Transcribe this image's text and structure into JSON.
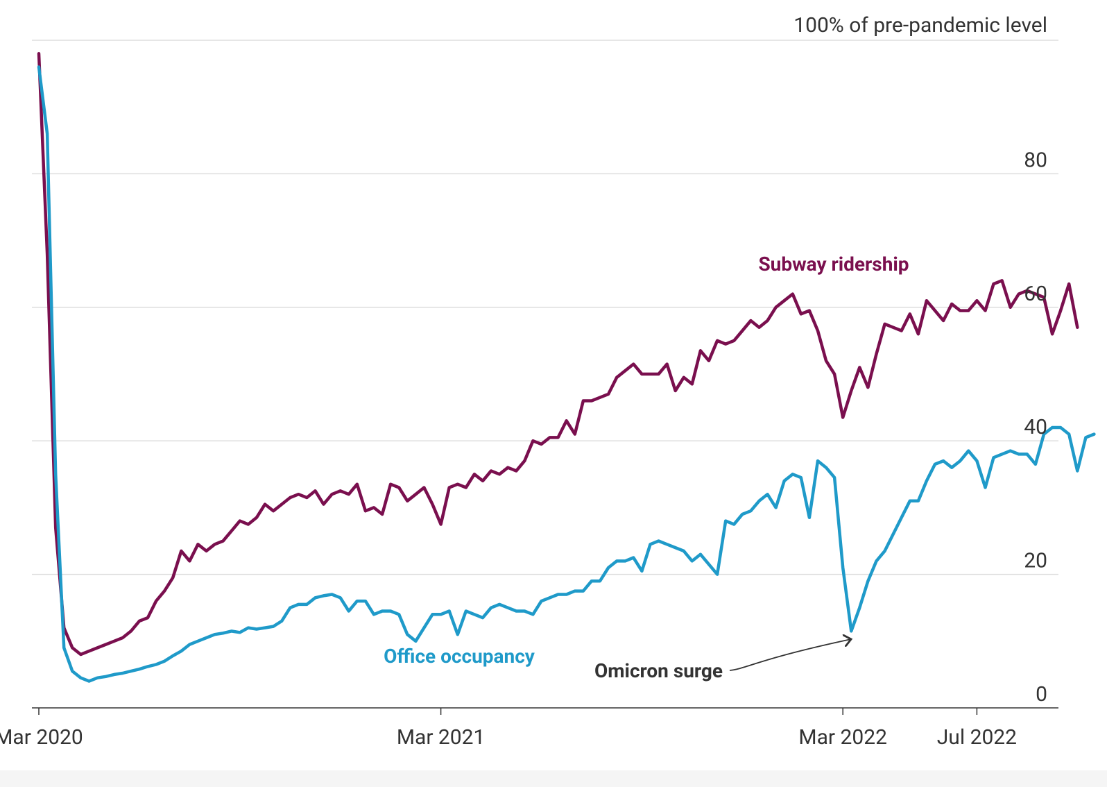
{
  "chart_data": {
    "type": "line",
    "ylabel": "100% of pre-pandemic level",
    "ylim": [
      0,
      100
    ],
    "yticks": [
      0,
      20,
      40,
      60,
      80
    ],
    "x_tick_labels": [
      {
        "label": "Mar 2020",
        "month": 0
      },
      {
        "label": "Mar 2021",
        "month": 12
      },
      {
        "label": "Mar 2022",
        "month": 24
      },
      {
        "label": "Jul 2022",
        "month": 28
      }
    ],
    "grid": true,
    "series": [
      {
        "name": "Subway ridership",
        "color": "#7a0f4e",
        "values": [
          [
            0.0,
            98
          ],
          [
            0.25,
            68
          ],
          [
            0.5,
            27
          ],
          [
            0.75,
            12
          ],
          [
            1.0,
            9
          ],
          [
            1.25,
            8
          ],
          [
            1.5,
            8.5
          ],
          [
            1.75,
            9
          ],
          [
            2.0,
            9.5
          ],
          [
            2.25,
            10
          ],
          [
            2.5,
            10.5
          ],
          [
            2.75,
            11.5
          ],
          [
            3.0,
            13
          ],
          [
            3.25,
            13.5
          ],
          [
            3.5,
            16
          ],
          [
            3.75,
            17.5
          ],
          [
            4.0,
            19.5
          ],
          [
            4.25,
            23.5
          ],
          [
            4.5,
            22
          ],
          [
            4.75,
            24.5
          ],
          [
            5.0,
            23.5
          ],
          [
            5.25,
            24.5
          ],
          [
            5.5,
            25
          ],
          [
            5.75,
            26.5
          ],
          [
            6.0,
            28
          ],
          [
            6.25,
            27.5
          ],
          [
            6.5,
            28.5
          ],
          [
            6.75,
            30.5
          ],
          [
            7.0,
            29.5
          ],
          [
            7.25,
            30.5
          ],
          [
            7.5,
            31.5
          ],
          [
            7.75,
            32
          ],
          [
            8.0,
            31.5
          ],
          [
            8.25,
            32.5
          ],
          [
            8.5,
            30.5
          ],
          [
            8.75,
            32
          ],
          [
            9.0,
            32.5
          ],
          [
            9.25,
            32
          ],
          [
            9.5,
            33.5
          ],
          [
            9.75,
            29.5
          ],
          [
            10.0,
            30
          ],
          [
            10.25,
            29
          ],
          [
            10.5,
            33.5
          ],
          [
            10.75,
            33
          ],
          [
            11.0,
            31
          ],
          [
            11.25,
            32
          ],
          [
            11.5,
            33
          ],
          [
            11.75,
            30.5
          ],
          [
            12.0,
            27.5
          ],
          [
            12.25,
            33
          ],
          [
            12.5,
            33.5
          ],
          [
            12.75,
            33
          ],
          [
            13.0,
            35
          ],
          [
            13.25,
            34
          ],
          [
            13.5,
            35.5
          ],
          [
            13.75,
            35
          ],
          [
            14.0,
            36
          ],
          [
            14.25,
            35.5
          ],
          [
            14.5,
            37
          ],
          [
            14.75,
            40
          ],
          [
            15.0,
            39.5
          ],
          [
            15.25,
            40.5
          ],
          [
            15.5,
            40.5
          ],
          [
            15.75,
            43
          ],
          [
            16.0,
            41
          ],
          [
            16.25,
            46
          ],
          [
            16.5,
            46
          ],
          [
            16.75,
            46.5
          ],
          [
            17.0,
            47
          ],
          [
            17.25,
            49.5
          ],
          [
            17.5,
            50.5
          ],
          [
            17.75,
            51.5
          ],
          [
            18.0,
            50
          ],
          [
            18.25,
            50
          ],
          [
            18.5,
            50
          ],
          [
            18.75,
            51.5
          ],
          [
            19.0,
            47.5
          ],
          [
            19.25,
            49.5
          ],
          [
            19.5,
            48.5
          ],
          [
            19.75,
            53.5
          ],
          [
            20.0,
            52
          ],
          [
            20.25,
            55
          ],
          [
            20.5,
            54.5
          ],
          [
            20.75,
            55
          ],
          [
            21.0,
            56.5
          ],
          [
            21.25,
            58
          ],
          [
            21.5,
            57
          ],
          [
            21.75,
            58
          ],
          [
            22.0,
            60
          ],
          [
            22.25,
            61
          ],
          [
            22.5,
            62
          ],
          [
            22.75,
            59
          ],
          [
            23.0,
            59.5
          ],
          [
            23.25,
            56.5
          ],
          [
            23.5,
            52
          ],
          [
            23.75,
            50
          ],
          [
            24.0,
            43.5
          ],
          [
            24.25,
            47.5
          ],
          [
            24.5,
            51
          ],
          [
            24.75,
            48
          ],
          [
            25.0,
            53
          ],
          [
            25.25,
            57.5
          ],
          [
            25.5,
            57
          ],
          [
            25.75,
            56.5
          ],
          [
            26.0,
            59
          ],
          [
            26.25,
            56
          ],
          [
            26.5,
            61
          ],
          [
            26.75,
            59.5
          ],
          [
            27.0,
            58
          ],
          [
            27.25,
            60.5
          ],
          [
            27.5,
            59.5
          ],
          [
            27.75,
            59.5
          ],
          [
            28.0,
            61
          ],
          [
            28.25,
            59.5
          ],
          [
            28.5,
            63.5
          ],
          [
            28.75,
            64
          ],
          [
            29.0,
            60
          ],
          [
            29.25,
            62
          ],
          [
            29.5,
            62.5
          ],
          [
            29.75,
            62
          ],
          [
            30.0,
            61.5
          ],
          [
            30.25,
            56
          ],
          [
            30.5,
            59.5
          ],
          [
            30.75,
            63.5
          ],
          [
            31.0,
            57
          ]
        ]
      },
      {
        "name": "Office occupancy",
        "color": "#1f9ac9",
        "values": [
          [
            0.0,
            96
          ],
          [
            0.25,
            86
          ],
          [
            0.5,
            35
          ],
          [
            0.75,
            9
          ],
          [
            1.0,
            5.5
          ],
          [
            1.25,
            4.5
          ],
          [
            1.5,
            4
          ],
          [
            1.75,
            4.5
          ],
          [
            2.0,
            4.7
          ],
          [
            2.25,
            5
          ],
          [
            2.5,
            5.2
          ],
          [
            2.75,
            5.5
          ],
          [
            3.0,
            5.8
          ],
          [
            3.25,
            6.2
          ],
          [
            3.5,
            6.5
          ],
          [
            3.75,
            7
          ],
          [
            4.0,
            7.8
          ],
          [
            4.25,
            8.5
          ],
          [
            4.5,
            9.5
          ],
          [
            4.75,
            10
          ],
          [
            5.0,
            10.5
          ],
          [
            5.25,
            11
          ],
          [
            5.5,
            11.2
          ],
          [
            5.75,
            11.5
          ],
          [
            6.0,
            11.3
          ],
          [
            6.25,
            12
          ],
          [
            6.5,
            11.8
          ],
          [
            6.75,
            12
          ],
          [
            7.0,
            12.2
          ],
          [
            7.25,
            13
          ],
          [
            7.5,
            15
          ],
          [
            7.75,
            15.5
          ],
          [
            8.0,
            15.5
          ],
          [
            8.25,
            16.5
          ],
          [
            8.5,
            16.8
          ],
          [
            8.75,
            17
          ],
          [
            9.0,
            16.5
          ],
          [
            9.25,
            14.5
          ],
          [
            9.5,
            16
          ],
          [
            9.75,
            16
          ],
          [
            10.0,
            14
          ],
          [
            10.25,
            14.5
          ],
          [
            10.5,
            14.5
          ],
          [
            10.75,
            14
          ],
          [
            11.0,
            11
          ],
          [
            11.25,
            10
          ],
          [
            11.5,
            12
          ],
          [
            11.75,
            14
          ],
          [
            12.0,
            14
          ],
          [
            12.25,
            14.5
          ],
          [
            12.5,
            11
          ],
          [
            12.75,
            14.5
          ],
          [
            13.0,
            14
          ],
          [
            13.25,
            13.5
          ],
          [
            13.5,
            15
          ],
          [
            13.75,
            15.5
          ],
          [
            14.0,
            15
          ],
          [
            14.25,
            14.5
          ],
          [
            14.5,
            14.5
          ],
          [
            14.75,
            14
          ],
          [
            15.0,
            16
          ],
          [
            15.25,
            16.5
          ],
          [
            15.5,
            17
          ],
          [
            15.75,
            17
          ],
          [
            16.0,
            17.5
          ],
          [
            16.25,
            17.5
          ],
          [
            16.5,
            19
          ],
          [
            16.75,
            19
          ],
          [
            17.0,
            21
          ],
          [
            17.25,
            22
          ],
          [
            17.5,
            22
          ],
          [
            17.75,
            22.5
          ],
          [
            18.0,
            20.5
          ],
          [
            18.25,
            24.5
          ],
          [
            18.5,
            25
          ],
          [
            18.75,
            24.5
          ],
          [
            19.0,
            24
          ],
          [
            19.25,
            23.5
          ],
          [
            19.5,
            22
          ],
          [
            19.75,
            23
          ],
          [
            20.0,
            21.5
          ],
          [
            20.25,
            20
          ],
          [
            20.5,
            28
          ],
          [
            20.75,
            27.5
          ],
          [
            21.0,
            29
          ],
          [
            21.25,
            29.5
          ],
          [
            21.5,
            31
          ],
          [
            21.75,
            32
          ],
          [
            22.0,
            30
          ],
          [
            22.25,
            34
          ],
          [
            22.5,
            35
          ],
          [
            22.75,
            34.5
          ],
          [
            23.0,
            28.5
          ],
          [
            23.25,
            37
          ],
          [
            23.5,
            36
          ],
          [
            23.75,
            34.5
          ],
          [
            24.0,
            21
          ],
          [
            24.25,
            11.5
          ],
          [
            24.5,
            15
          ],
          [
            24.75,
            19
          ],
          [
            25.0,
            22
          ],
          [
            25.25,
            23.5
          ],
          [
            25.5,
            26
          ],
          [
            25.75,
            28.5
          ],
          [
            26.0,
            31
          ],
          [
            26.25,
            31
          ],
          [
            26.5,
            34
          ],
          [
            26.75,
            36.5
          ],
          [
            27.0,
            37
          ],
          [
            27.25,
            36
          ],
          [
            27.5,
            37
          ],
          [
            27.75,
            38.5
          ],
          [
            28.0,
            37
          ],
          [
            28.25,
            33
          ],
          [
            28.5,
            37.5
          ],
          [
            28.75,
            38
          ],
          [
            29.0,
            38.5
          ],
          [
            29.25,
            38
          ],
          [
            29.5,
            38
          ],
          [
            29.75,
            36.5
          ],
          [
            30.0,
            41
          ],
          [
            30.25,
            42
          ],
          [
            30.5,
            42
          ],
          [
            30.75,
            41
          ],
          [
            31.0,
            35.5
          ],
          [
            31.25,
            40.5
          ],
          [
            31.5,
            41
          ]
        ]
      }
    ],
    "annotations": [
      {
        "text": "Omicron surge",
        "target_month": 24.25,
        "target_value": 11.5
      }
    ]
  }
}
